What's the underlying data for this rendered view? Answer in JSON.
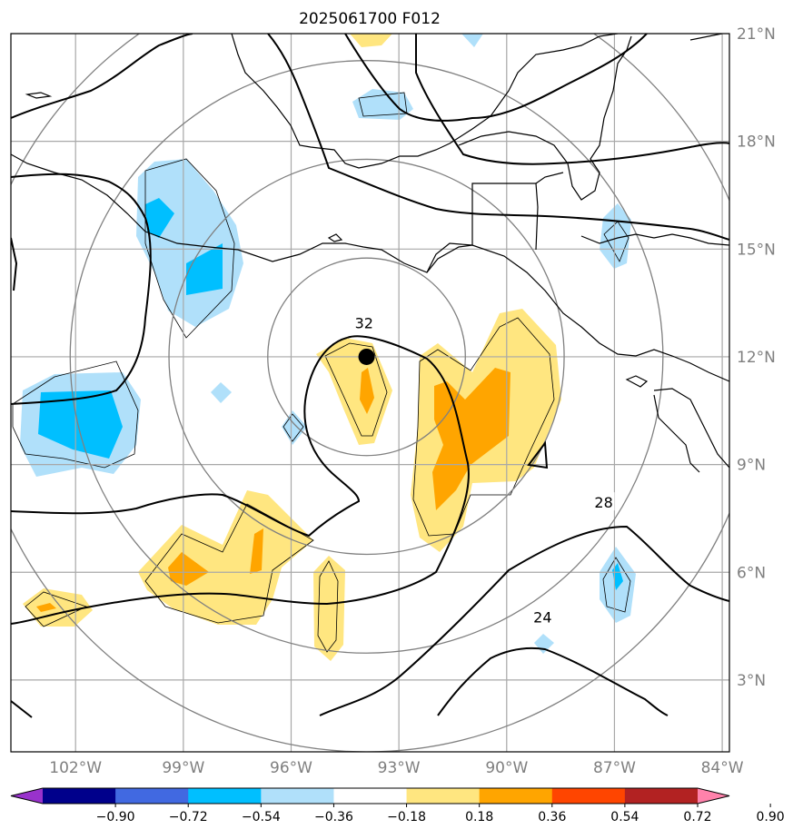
{
  "title": "2025061700 F012",
  "map": {
    "lon_ticks": [
      "102°W",
      "99°W",
      "96°W",
      "93°W",
      "90°W",
      "87°W",
      "84°W"
    ],
    "lat_ticks": [
      "3°N",
      "6°N",
      "9°N",
      "12°N",
      "15°N",
      "18°N",
      "21°N"
    ],
    "lon_range": [
      -103.8,
      -83.8
    ],
    "lat_range": [
      1.0,
      21.0
    ],
    "storm_center": {
      "lon": -93.9,
      "lat": 12.0
    },
    "range_rings_deg": [
      2.75,
      5.5,
      8.25,
      11.0
    ],
    "colors": {
      "contour": "#000000",
      "coast": "#000000",
      "grid": "#a8a8a8",
      "ring": "#808080"
    }
  },
  "contour_labels": [
    {
      "text": "32",
      "lon": -93.97,
      "lat": 12.95
    },
    {
      "text": "28",
      "lon": -87.3,
      "lat": 7.95
    },
    {
      "text": "24",
      "lon": -89.0,
      "lat": 4.75
    }
  ],
  "colorbar": {
    "bounds": [
      "−0.90",
      "−0.72",
      "−0.54",
      "−0.36",
      "−0.18",
      "0.18",
      "0.36",
      "0.54",
      "0.72",
      "0.90"
    ],
    "colors": [
      "#9932cc",
      "#00008b",
      "#4169e1",
      "#00bfff",
      "#b0e0fa",
      "#ffffff",
      "#ffe680",
      "#ffa500",
      "#ff4500",
      "#b22222",
      "#ff82ab"
    ]
  },
  "shading_colors": {
    "light_blue": "#b0e0fa",
    "deep_sky_blue": "#00bfff",
    "light_yellow": "#ffe680",
    "orange": "#ffa500"
  }
}
